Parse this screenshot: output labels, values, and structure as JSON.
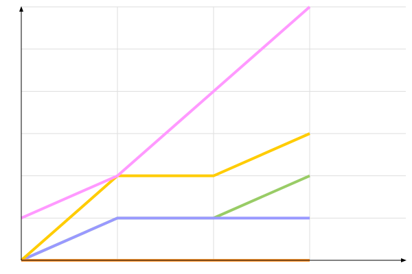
{
  "chart_data": {
    "type": "line",
    "title": "",
    "xlabel": "",
    "ylabel": "",
    "x": [
      0,
      1,
      2,
      3
    ],
    "xlim": [
      0,
      4
    ],
    "ylim": [
      0,
      6
    ],
    "grid": true,
    "legend": "none",
    "series": [
      {
        "color": "#99cc66",
        "values": [
          0,
          1,
          1,
          2
        ]
      },
      {
        "color": "#9999ff",
        "values": [
          0,
          1,
          1,
          1
        ]
      },
      {
        "color": "#ffcc00",
        "values": [
          0,
          2,
          2,
          3
        ]
      },
      {
        "color": "#ff99ff",
        "values": [
          1,
          2,
          4,
          6
        ]
      },
      {
        "color": "#ff9933",
        "values": [
          0,
          0,
          0,
          0
        ]
      }
    ]
  }
}
